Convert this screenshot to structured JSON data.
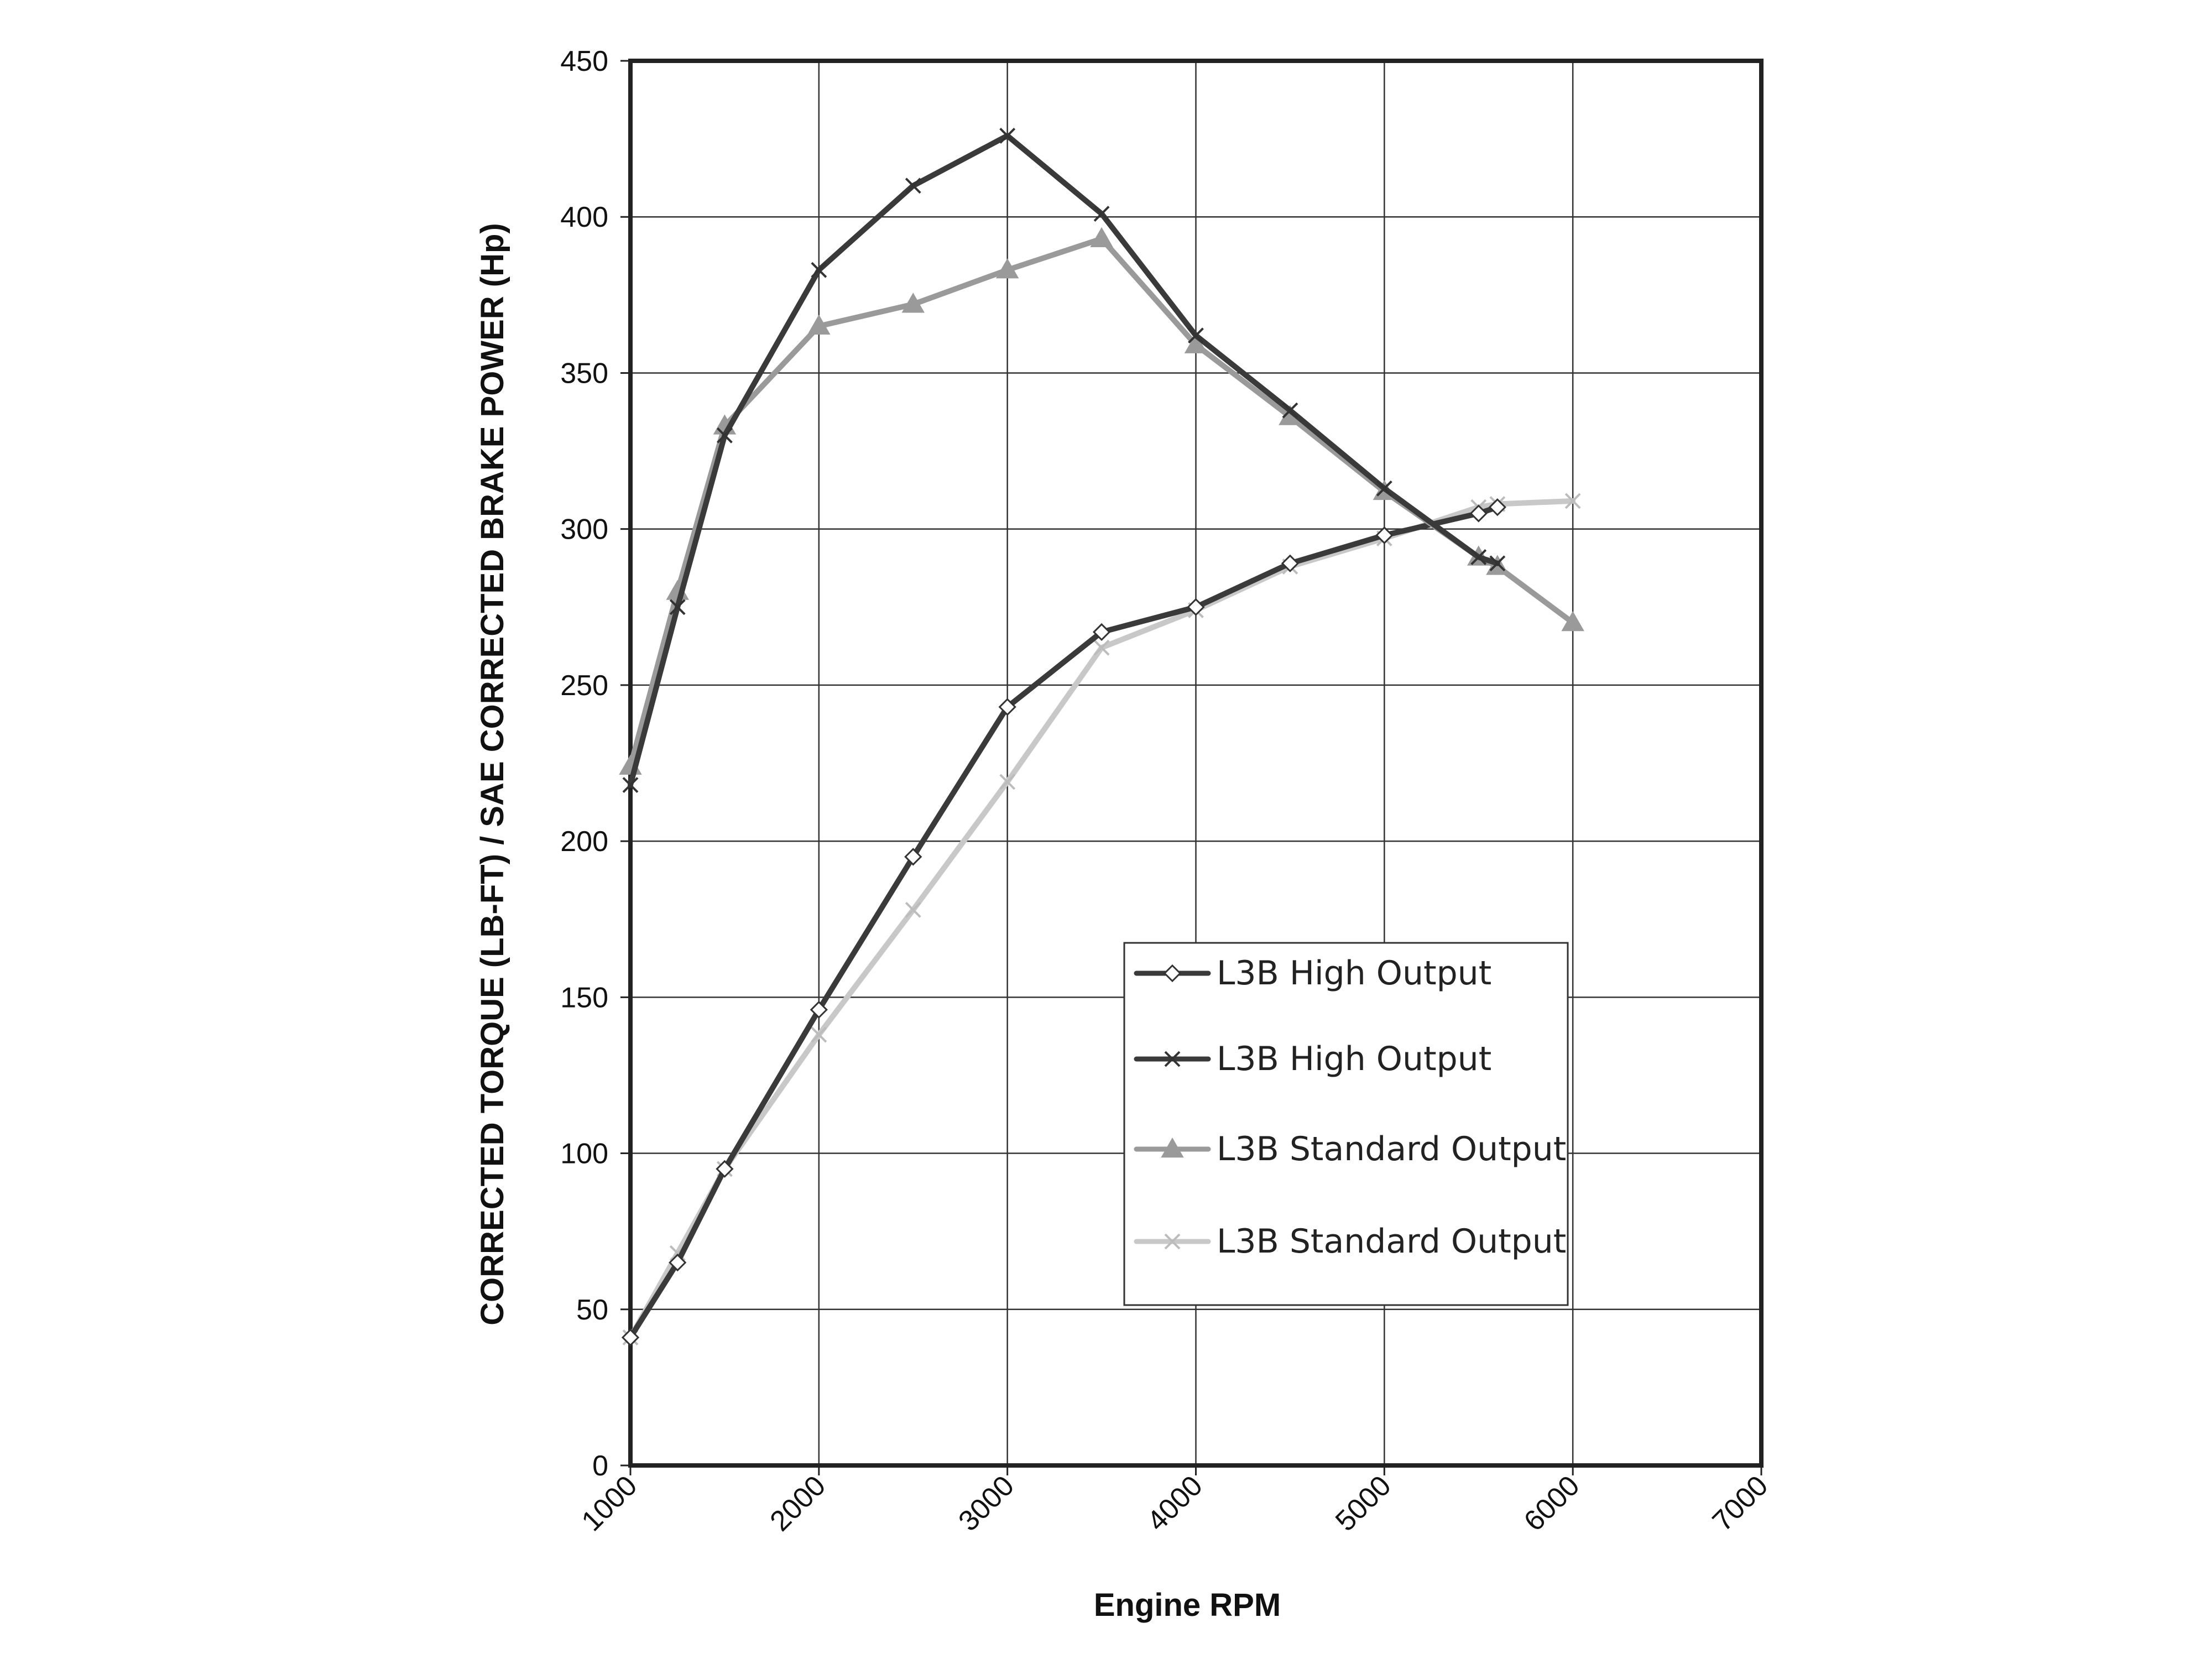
{
  "chart_data": {
    "type": "line",
    "title": "",
    "xlabel": "Engine RPM",
    "ylabel": "CORRECTED TORQUE (LB-FT) / SAE CORRECTED BRAKE POWER (Hp)",
    "xlim": [
      1000,
      7000
    ],
    "ylim": [
      0,
      450
    ],
    "x_ticks": [
      "1000",
      "2000",
      "3000",
      "4000",
      "5000",
      "6000",
      "7000"
    ],
    "y_ticks": [
      "0",
      "50",
      "100",
      "150",
      "200",
      "250",
      "300",
      "350",
      "400",
      "450"
    ],
    "grid": true,
    "legend_position": "bottom-right",
    "series": [
      {
        "name": "L3B High Output",
        "marker": "diamond",
        "color": "#3a3a3a",
        "points": [
          [
            1000,
            41
          ],
          [
            1250,
            65
          ],
          [
            1500,
            95
          ],
          [
            2000,
            146
          ],
          [
            2500,
            195
          ],
          [
            3000,
            243
          ],
          [
            3500,
            267
          ],
          [
            4000,
            275
          ],
          [
            4500,
            289
          ],
          [
            5000,
            298
          ],
          [
            5500,
            305
          ],
          [
            5600,
            307
          ]
        ]
      },
      {
        "name": "L3B High Output",
        "marker": "x",
        "color": "#3a3a3a",
        "points": [
          [
            1000,
            218
          ],
          [
            1250,
            275
          ],
          [
            1500,
            330
          ],
          [
            2000,
            383
          ],
          [
            2500,
            410
          ],
          [
            3000,
            426
          ],
          [
            3500,
            401
          ],
          [
            4000,
            362
          ],
          [
            4500,
            338
          ],
          [
            5000,
            313
          ],
          [
            5500,
            291
          ],
          [
            5600,
            289
          ]
        ]
      },
      {
        "name": "L3B Standard Output",
        "marker": "triangle",
        "color": "#9a9a9a",
        "points": [
          [
            1000,
            224
          ],
          [
            1250,
            280
          ],
          [
            1500,
            333
          ],
          [
            2000,
            365
          ],
          [
            2500,
            372
          ],
          [
            3000,
            383
          ],
          [
            3500,
            393
          ],
          [
            4000,
            359
          ],
          [
            4500,
            336
          ],
          [
            5000,
            312
          ],
          [
            5500,
            291
          ],
          [
            5600,
            288
          ],
          [
            6000,
            270
          ]
        ]
      },
      {
        "name": "L3B Standard Output",
        "marker": "x",
        "color": "#c8c8c8",
        "points": [
          [
            1000,
            41
          ],
          [
            1250,
            68
          ],
          [
            1500,
            95
          ],
          [
            2000,
            138
          ],
          [
            2500,
            178
          ],
          [
            3000,
            219
          ],
          [
            3500,
            262
          ],
          [
            4000,
            274
          ],
          [
            4500,
            288
          ],
          [
            5000,
            297
          ],
          [
            5500,
            307
          ],
          [
            5600,
            308
          ],
          [
            6000,
            309
          ]
        ]
      }
    ]
  }
}
